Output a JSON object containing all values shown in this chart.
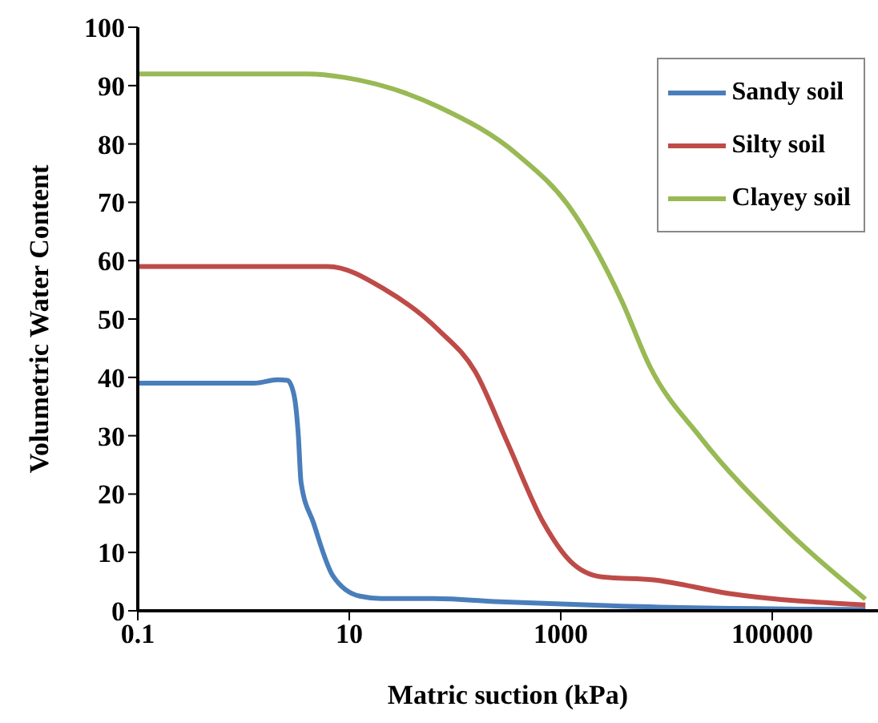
{
  "chart_data": {
    "type": "line",
    "xlabel": "Matric suction (kPa)",
    "ylabel": "Volumetric Water Content",
    "log": "x",
    "xlim": [
      0.1,
      1000000
    ],
    "xticks": [
      0.1,
      10,
      1000,
      100000
    ],
    "ylim": [
      0,
      100
    ],
    "yticks": [
      0,
      10,
      20,
      30,
      40,
      50,
      60,
      70,
      80,
      90,
      100
    ],
    "grid": false,
    "legend": "top right",
    "marker": "none",
    "line_style": "solid",
    "series": [
      {
        "name": "Sandy soil",
        "color": "#4a7ebb",
        "x": [
          0.1,
          0.5,
          1.26,
          2.1,
          2.6,
          3,
          3.3,
          3.5,
          4.6,
          7,
          12.6,
          20,
          62,
          300,
          3800,
          760000
        ],
        "values": [
          39,
          39,
          39,
          39.6,
          39.5,
          37,
          30,
          22,
          15,
          6,
          2.5,
          2.1,
          2.1,
          1.5,
          0.8,
          0.2
        ]
      },
      {
        "name": "Silty soil",
        "color": "#be4b48",
        "x": [
          0.1,
          1,
          6.3,
          22,
          71,
          155,
          310,
          690,
          1230,
          2450,
          7600,
          38000,
          760000
        ],
        "values": [
          59,
          59,
          59,
          55,
          48,
          41,
          29,
          15,
          8.5,
          5.8,
          5.3,
          3,
          1
        ]
      },
      {
        "name": "Clayey soil",
        "color": "#98b954",
        "x": [
          0.1,
          1,
          4,
          9,
          71,
          400,
          1230,
          3800,
          6900,
          21000,
          117000,
          760000
        ],
        "values": [
          92,
          92,
          92,
          91.4,
          86.3,
          78,
          69,
          53,
          42,
          29.7,
          15,
          2
        ]
      }
    ]
  }
}
